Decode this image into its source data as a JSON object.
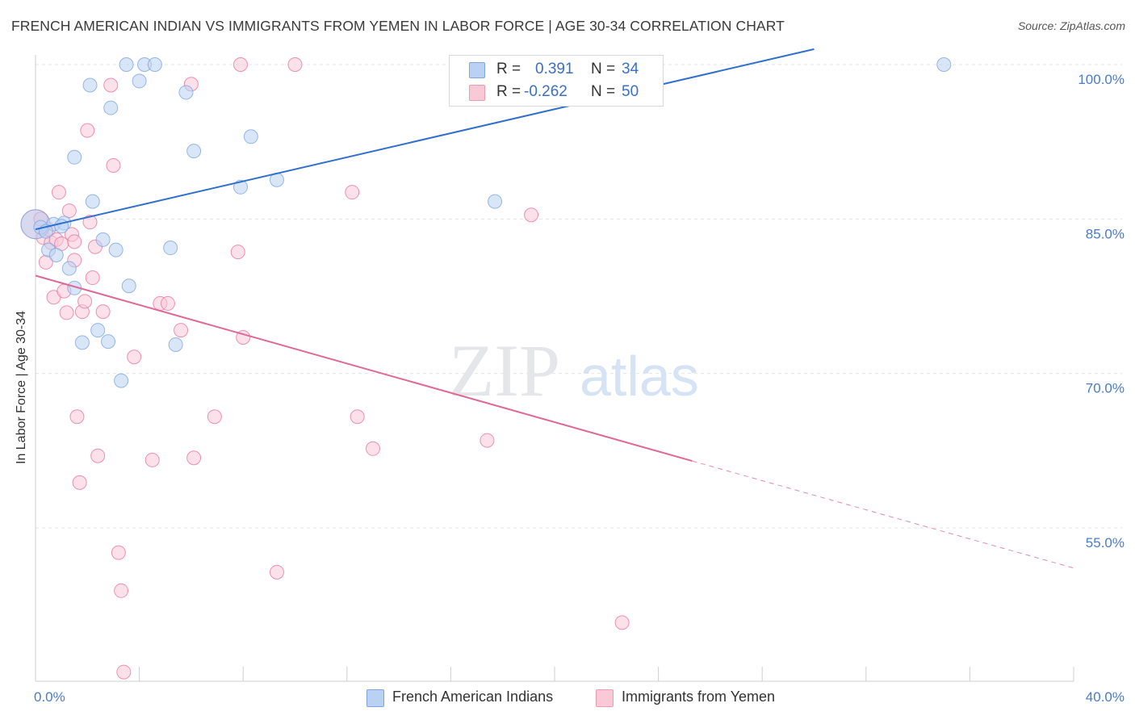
{
  "title": "FRENCH AMERICAN INDIAN VS IMMIGRANTS FROM YEMEN IN LABOR FORCE | AGE 30-34 CORRELATION CHART",
  "source": "Source: ZipAtlas.com",
  "watermark": {
    "zip": "ZIP",
    "atlas": "atlas"
  },
  "stats": [
    {
      "r_label": "R =",
      "r_value": "0.391",
      "n_label": "N =",
      "n_value": "34",
      "color": "#8fb4e8"
    },
    {
      "r_label": "R =",
      "r_value": "-0.262",
      "n_label": "N =",
      "n_value": "50",
      "color": "#f2a6bf"
    }
  ],
  "legend": [
    {
      "label": "French American Indians",
      "fill": "#b9d1f3",
      "stroke": "#7fa6e0"
    },
    {
      "label": "Immigrants from Yemen",
      "fill": "#f9c9d8",
      "stroke": "#ee9ab5"
    }
  ],
  "chart_data": {
    "type": "scatter",
    "title": "FRENCH AMERICAN INDIAN VS IMMIGRANTS FROM YEMEN IN LABOR FORCE | AGE 30-34 CORRELATION CHART",
    "xlabel": "",
    "ylabel": "In Labor Force | Age 30-34",
    "xlim": [
      0,
      40
    ],
    "ylim": [
      40,
      101.5
    ],
    "x_tick_labels": [
      "0.0%",
      "40.0%"
    ],
    "y_ticks": [
      55,
      70,
      85,
      100
    ],
    "y_tick_labels": [
      "55.0%",
      "70.0%",
      "85.0%",
      "100.0%"
    ],
    "grid": true,
    "legend_position": "bottom-center",
    "series": [
      {
        "name": "French American Indians",
        "color": "#7fa6e0",
        "fill": "#b9d1f3",
        "trend": {
          "x": [
            0,
            30.0
          ],
          "y": [
            84.0,
            101.5
          ]
        },
        "points": [
          {
            "x": 0.0,
            "y": 84.5,
            "big": true
          },
          {
            "x": 0.2,
            "y": 84.2
          },
          {
            "x": 0.5,
            "y": 82.0
          },
          {
            "x": 0.7,
            "y": 84.5
          },
          {
            "x": 0.8,
            "y": 81.5
          },
          {
            "x": 1.1,
            "y": 84.6
          },
          {
            "x": 1.3,
            "y": 80.2
          },
          {
            "x": 1.5,
            "y": 78.3
          },
          {
            "x": 1.5,
            "y": 91.0
          },
          {
            "x": 1.8,
            "y": 73.0
          },
          {
            "x": 2.1,
            "y": 98.0
          },
          {
            "x": 2.2,
            "y": 86.7
          },
          {
            "x": 2.4,
            "y": 74.2
          },
          {
            "x": 2.6,
            "y": 83.0
          },
          {
            "x": 2.8,
            "y": 73.1
          },
          {
            "x": 2.9,
            "y": 95.8
          },
          {
            "x": 3.1,
            "y": 82.0
          },
          {
            "x": 3.3,
            "y": 69.3
          },
          {
            "x": 3.5,
            "y": 100.0
          },
          {
            "x": 3.6,
            "y": 78.5
          },
          {
            "x": 4.0,
            "y": 98.4
          },
          {
            "x": 4.2,
            "y": 100.0
          },
          {
            "x": 4.6,
            "y": 100.0
          },
          {
            "x": 5.2,
            "y": 82.2
          },
          {
            "x": 5.4,
            "y": 72.8
          },
          {
            "x": 5.8,
            "y": 97.3
          },
          {
            "x": 6.1,
            "y": 91.6
          },
          {
            "x": 7.9,
            "y": 88.1
          },
          {
            "x": 8.3,
            "y": 93.0
          },
          {
            "x": 9.3,
            "y": 88.8
          },
          {
            "x": 17.7,
            "y": 86.7
          },
          {
            "x": 35.0,
            "y": 100.0
          },
          {
            "x": 1.0,
            "y": 84.3
          },
          {
            "x": 0.4,
            "y": 83.8
          }
        ]
      },
      {
        "name": "Immigrants from Yemen",
        "color": "#e8789e",
        "fill": "#f9c9d8",
        "trend": {
          "x": [
            0,
            25.3
          ],
          "y": [
            79.5,
            61.5
          ]
        },
        "trend_dashed": {
          "x": [
            25.3,
            40.0
          ],
          "y": [
            61.5,
            51.1
          ]
        },
        "points": [
          {
            "x": 0.0,
            "y": 84.5,
            "big": true
          },
          {
            "x": 0.3,
            "y": 83.2
          },
          {
            "x": 0.4,
            "y": 80.8
          },
          {
            "x": 0.6,
            "y": 82.7
          },
          {
            "x": 0.7,
            "y": 77.4
          },
          {
            "x": 0.8,
            "y": 83.0
          },
          {
            "x": 0.9,
            "y": 87.6
          },
          {
            "x": 1.0,
            "y": 82.6
          },
          {
            "x": 1.1,
            "y": 78.0
          },
          {
            "x": 1.2,
            "y": 75.9
          },
          {
            "x": 1.3,
            "y": 85.8
          },
          {
            "x": 1.4,
            "y": 83.5
          },
          {
            "x": 1.5,
            "y": 81.0
          },
          {
            "x": 1.6,
            "y": 65.8
          },
          {
            "x": 1.7,
            "y": 59.4
          },
          {
            "x": 1.8,
            "y": 76.0
          },
          {
            "x": 1.9,
            "y": 77.0
          },
          {
            "x": 2.0,
            "y": 93.6
          },
          {
            "x": 2.1,
            "y": 84.7
          },
          {
            "x": 2.2,
            "y": 79.3
          },
          {
            "x": 2.3,
            "y": 82.3
          },
          {
            "x": 2.4,
            "y": 62.0
          },
          {
            "x": 2.9,
            "y": 98.0
          },
          {
            "x": 3.0,
            "y": 90.2
          },
          {
            "x": 3.2,
            "y": 52.6
          },
          {
            "x": 3.3,
            "y": 48.9
          },
          {
            "x": 3.4,
            "y": 41.0
          },
          {
            "x": 3.8,
            "y": 71.6
          },
          {
            "x": 4.5,
            "y": 61.6
          },
          {
            "x": 4.8,
            "y": 76.8
          },
          {
            "x": 5.1,
            "y": 76.8
          },
          {
            "x": 5.6,
            "y": 74.2
          },
          {
            "x": 6.0,
            "y": 98.1
          },
          {
            "x": 6.1,
            "y": 61.8
          },
          {
            "x": 6.9,
            "y": 65.8
          },
          {
            "x": 7.8,
            "y": 81.8
          },
          {
            "x": 7.9,
            "y": 100.0
          },
          {
            "x": 8.0,
            "y": 73.5
          },
          {
            "x": 9.3,
            "y": 50.7
          },
          {
            "x": 10.0,
            "y": 100.0
          },
          {
            "x": 12.2,
            "y": 87.6
          },
          {
            "x": 12.4,
            "y": 65.8
          },
          {
            "x": 13.0,
            "y": 62.7
          },
          {
            "x": 17.4,
            "y": 63.5
          },
          {
            "x": 19.1,
            "y": 85.4
          },
          {
            "x": 22.6,
            "y": 45.8
          },
          {
            "x": 0.5,
            "y": 84.0
          },
          {
            "x": 0.2,
            "y": 85.0
          },
          {
            "x": 2.6,
            "y": 76.0
          },
          {
            "x": 1.5,
            "y": 82.8
          }
        ]
      }
    ]
  }
}
